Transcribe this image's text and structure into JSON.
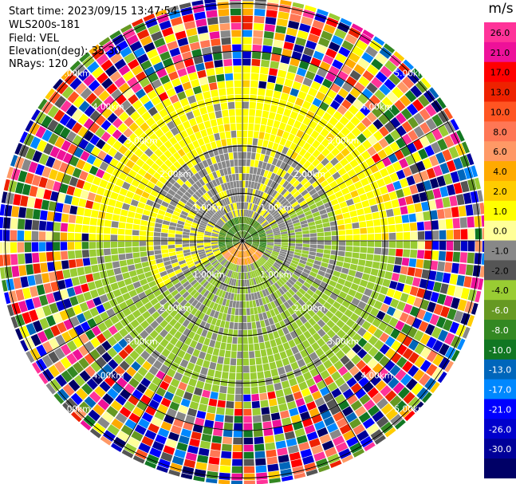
{
  "header": {
    "start_time": "Start time: 2023/09/15 13:47:54",
    "instrument": "WLS200s-181",
    "field": "Field: VEL",
    "elevation": "Elevation(deg): 35.30",
    "nrays": "NRays: 120"
  },
  "colorbar": {
    "unit": "m/s",
    "ticks": [
      "26.0",
      "21.0",
      "17.0",
      "13.0",
      "10.0",
      "8.0",
      "6.0",
      "4.0",
      "2.0",
      "1.0",
      "0.0",
      "-1.0",
      "-2.0",
      "-4.0",
      "-6.0",
      "-8.0",
      "-10.0",
      "-13.0",
      "-17.0",
      "-21.0",
      "-26.0",
      "-30.0"
    ],
    "colors": [
      "#ff3399",
      "#ee1199",
      "#ff0000",
      "#ee2200",
      "#ff5522",
      "#ff7755",
      "#ff9966",
      "#ffaa00",
      "#ffcc00",
      "#ffff00",
      "#ffff99",
      "#888888",
      "#555555",
      "#99cc33",
      "#669922",
      "#338822",
      "#117722",
      "#0066bb",
      "#0088ff",
      "#0000ff",
      "#0000cc",
      "#000099",
      "#000066"
    ]
  },
  "chart_data": {
    "type": "ppi",
    "field": "VEL",
    "rays": 120,
    "range_rings_km": [
      1.0,
      2.0,
      3.0,
      4.0,
      5.0
    ],
    "ring_labels": [
      "1.00km",
      "2.00km",
      "3.00km",
      "4.00km",
      "5.00km"
    ],
    "spoke_angles_deg": [
      0,
      30,
      60,
      90,
      120,
      150,
      180,
      210,
      240,
      270,
      300,
      330
    ],
    "velocity_range_ms": [
      -30,
      26
    ]
  }
}
